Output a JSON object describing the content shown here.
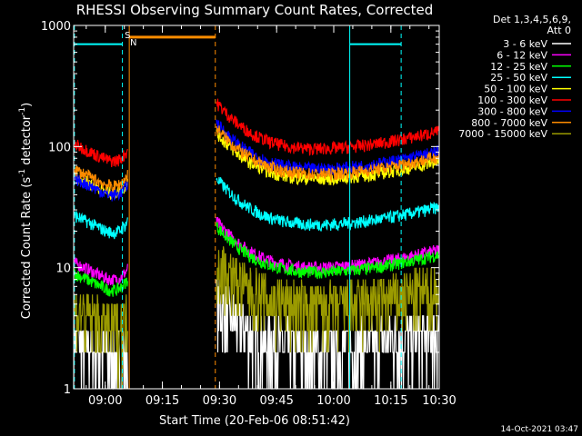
{
  "chart_data": {
    "type": "line",
    "title": "RHESSI Observing Summary Count Rates, Corrected",
    "xlabel": "Start Time (20-Feb-06 08:51:42)",
    "ylabel": "Corrected Count Rate (s",
    "ylabel_sup1": "-1",
    "ylabel_mid": " detector",
    "ylabel_sup2": "-1",
    "ylabel_end": ")",
    "ylim": [
      1,
      1000
    ],
    "xlim_minutes": [
      0,
      96
    ],
    "y_ticks": [
      {
        "v": 1,
        "label": "1"
      },
      {
        "v": 10,
        "label": "10"
      },
      {
        "v": 100,
        "label": "100"
      },
      {
        "v": 1000,
        "label": "1000"
      }
    ],
    "x_ticks": [
      {
        "t": 8.3,
        "label": "09:00"
      },
      {
        "t": 23.3,
        "label": "09:15"
      },
      {
        "t": 38.3,
        "label": "09:30"
      },
      {
        "t": 53.3,
        "label": "09:45"
      },
      {
        "t": 68.3,
        "label": "10:00"
      },
      {
        "t": 83.3,
        "label": "10:15"
      },
      {
        "t": 98.3,
        "label": "10:30"
      }
    ],
    "legend_header": [
      "Det 1,3,4,5,6,9,",
      "Att 0"
    ],
    "series": [
      {
        "name": "3 - 6 keV",
        "color": "#ffffff",
        "pre": 2.5,
        "post": 2.5
      },
      {
        "name": "6 - 12 keV",
        "color": "#ff00ff",
        "pre": 11,
        "post": 11.5
      },
      {
        "name": "12 - 25 keV",
        "color": "#00ff00",
        "pre": 9,
        "post": 10.5
      },
      {
        "name": "25 - 50 keV",
        "color": "#00ffff",
        "pre": 27,
        "post": 26
      },
      {
        "name": "50 - 100 keV",
        "color": "#ffff00",
        "pre": 57,
        "post": 62
      },
      {
        "name": "100 - 300 keV",
        "color": "#ff0000",
        "pre": 105,
        "post": 110
      },
      {
        "name": "300 - 800 keV",
        "color": "#0000ff",
        "pre": 55,
        "post": 75
      },
      {
        "name": "800 - 7000 keV",
        "color": "#ff8c00",
        "pre": 65,
        "post": 68
      },
      {
        "name": "7000 - 15000 keV",
        "color": "#9a9a00",
        "pre": 4.5,
        "post": 5.5
      }
    ],
    "annotations": {
      "saa_label": "S",
      "night_label": "N"
    },
    "footer_date": "14-Oct-2021 03:47"
  }
}
